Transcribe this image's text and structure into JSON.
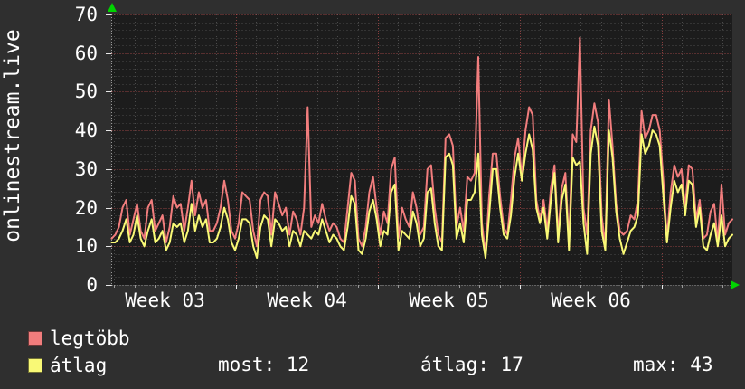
{
  "header": {
    "title": "onlinestream.live"
  },
  "chart_data": {
    "type": "line",
    "title": "onlinestream.live",
    "xlabel": "",
    "ylabel": "",
    "ylim": [
      0,
      70
    ],
    "y_ticks": [
      0,
      10,
      20,
      30,
      40,
      50,
      60,
      70
    ],
    "x_tick_labels": [
      "Week 03",
      "Week 04",
      "Week 05",
      "Week 06"
    ],
    "grid": true,
    "legend_position": "bottom-left",
    "colors": {
      "background": "#2f2f2f",
      "plot_background": "#1c1c1c",
      "minor_grid": "#4c4c4c",
      "major_grid": "#c85a5a",
      "axis": "#9a9a9a",
      "arrow": "#00d400",
      "text": "#ffffff"
    },
    "series": [
      {
        "name": "legtöbb",
        "color": "#f17d7d",
        "values": [
          12,
          13,
          15,
          20,
          22,
          13,
          17,
          21,
          14,
          12,
          20,
          22,
          14,
          16,
          18,
          11,
          15,
          23,
          20,
          21,
          14,
          20,
          27,
          18,
          24,
          20,
          22,
          14,
          14,
          16,
          20,
          27,
          22,
          14,
          12,
          16,
          24,
          23,
          22,
          14,
          10,
          22,
          24,
          23,
          13,
          24,
          21,
          18,
          20,
          13,
          19,
          17,
          13,
          20,
          46,
          15,
          18,
          16,
          21,
          17,
          14,
          16,
          15,
          12,
          11,
          20,
          29,
          27,
          12,
          10,
          15,
          24,
          28,
          20,
          13,
          19,
          16,
          30,
          33,
          12,
          20,
          17,
          15,
          24,
          20,
          13,
          15,
          30,
          31,
          20,
          13,
          11,
          38,
          39,
          36,
          15,
          20,
          14,
          28,
          27,
          29,
          59,
          16,
          8,
          23,
          34,
          34,
          23,
          15,
          13,
          22,
          33,
          38,
          28,
          40,
          46,
          44,
          22,
          17,
          22,
          14,
          25,
          31,
          13,
          25,
          29,
          11,
          39,
          37,
          64,
          20,
          13,
          40,
          47,
          42,
          18,
          10,
          48,
          36,
          21,
          14,
          13,
          14,
          18,
          17,
          22,
          45,
          38,
          40,
          44,
          44,
          40,
          27,
          12,
          24,
          31,
          28,
          30,
          20,
          31,
          30,
          17,
          22,
          12,
          13,
          19,
          21,
          11,
          26,
          13,
          16,
          17
        ]
      },
      {
        "name": "átlag",
        "color": "#f9f976",
        "values": [
          11,
          11,
          12,
          14,
          17,
          11,
          13,
          18,
          12,
          10,
          14,
          17,
          11,
          12,
          14,
          9,
          11,
          16,
          15,
          16,
          11,
          14,
          21,
          14,
          18,
          15,
          17,
          11,
          11,
          12,
          15,
          20,
          17,
          11,
          9,
          12,
          17,
          17,
          16,
          10,
          7,
          15,
          18,
          17,
          10,
          17,
          16,
          14,
          15,
          10,
          14,
          13,
          10,
          14,
          13,
          12,
          14,
          13,
          17,
          14,
          11,
          13,
          12,
          10,
          9,
          15,
          23,
          21,
          9,
          8,
          12,
          19,
          22,
          17,
          10,
          14,
          13,
          24,
          26,
          9,
          14,
          13,
          12,
          19,
          16,
          10,
          12,
          24,
          25,
          16,
          10,
          9,
          33,
          34,
          31,
          12,
          16,
          11,
          22,
          22,
          24,
          34,
          13,
          7,
          18,
          30,
          30,
          20,
          13,
          12,
          18,
          28,
          34,
          27,
          34,
          39,
          35,
          20,
          16,
          20,
          12,
          22,
          29,
          11,
          22,
          26,
          9,
          33,
          31,
          32,
          16,
          8,
          34,
          41,
          36,
          14,
          9,
          40,
          33,
          19,
          12,
          8,
          11,
          14,
          15,
          18,
          39,
          34,
          36,
          40,
          39,
          36,
          23,
          11,
          20,
          27,
          24,
          26,
          18,
          27,
          26,
          15,
          20,
          10,
          9,
          13,
          16,
          10,
          18,
          10,
          12,
          13
        ]
      }
    ]
  },
  "legend": {
    "items": [
      {
        "label": "legtöbb"
      },
      {
        "label": "átlag"
      }
    ]
  },
  "stats": {
    "most": {
      "label": "most:",
      "value": "12"
    },
    "atlag": {
      "label": "átlag:",
      "value": "17"
    },
    "max": {
      "label": "max:",
      "value": "43"
    }
  }
}
